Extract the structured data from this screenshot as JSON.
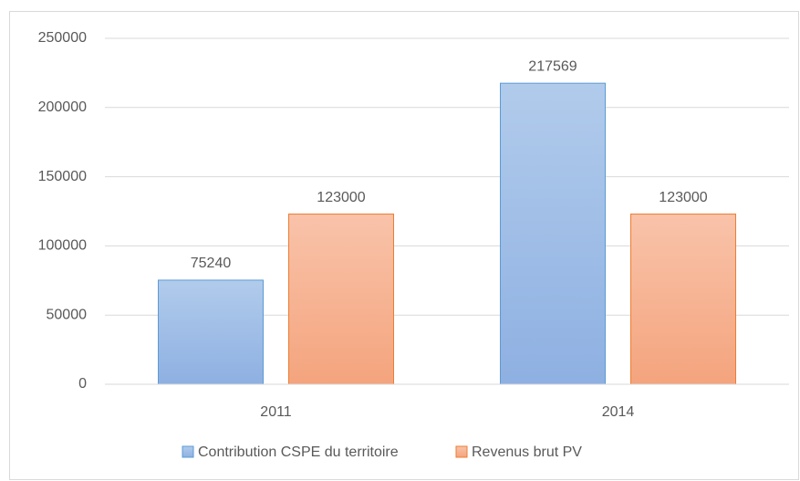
{
  "chart_data": {
    "type": "bar",
    "categories": [
      "2011",
      "2014"
    ],
    "series": [
      {
        "name": "Contribution CSPE du territoire",
        "color": "#5b9bd5",
        "values": [
          75240,
          217569
        ]
      },
      {
        "name": "Revenus brut PV",
        "color": "#ed7d31",
        "values": [
          123000,
          123000
        ]
      }
    ],
    "ylim": [
      0,
      250000
    ],
    "yticks": [
      0,
      50000,
      100000,
      150000,
      200000,
      250000
    ],
    "grid": true,
    "legend": "bottom",
    "data_labels": true
  }
}
